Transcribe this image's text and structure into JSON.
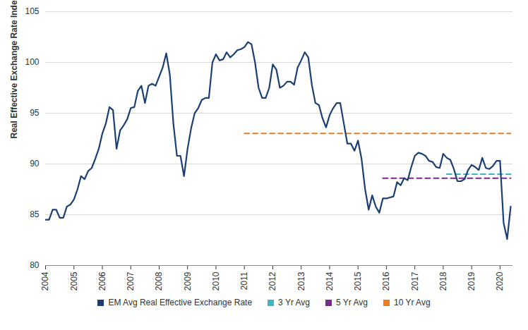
{
  "chart_data": {
    "type": "line",
    "y_label": "Real Effective Exchange Rate Index",
    "grid": true,
    "legend": "bottom",
    "xlim": [
      2004,
      2020.45
    ],
    "xticks": [
      2004,
      2005,
      2006,
      2007,
      2008,
      2009,
      2010,
      2011,
      2012,
      2013,
      2014,
      2015,
      2016,
      2017,
      2018,
      2019,
      2020
    ],
    "ylim": [
      80,
      105
    ],
    "yticks": [
      80,
      85,
      90,
      95,
      100,
      105
    ],
    "x": [
      2004,
      2004.125,
      2004.25,
      2004.375,
      2004.5,
      2004.625,
      2004.75,
      2004.875,
      2005,
      2005.125,
      2005.25,
      2005.375,
      2005.5,
      2005.625,
      2005.75,
      2005.875,
      2006,
      2006.125,
      2006.25,
      2006.375,
      2006.5,
      2006.625,
      2006.75,
      2006.875,
      2007,
      2007.125,
      2007.25,
      2007.375,
      2007.5,
      2007.625,
      2007.75,
      2007.875,
      2008,
      2008.125,
      2008.25,
      2008.375,
      2008.5,
      2008.625,
      2008.75,
      2008.875,
      2009,
      2009.125,
      2009.25,
      2009.375,
      2009.5,
      2009.625,
      2009.75,
      2009.875,
      2010,
      2010.125,
      2010.25,
      2010.375,
      2010.5,
      2010.625,
      2010.75,
      2010.875,
      2011,
      2011.125,
      2011.25,
      2011.375,
      2011.5,
      2011.625,
      2011.75,
      2011.875,
      2012,
      2012.125,
      2012.25,
      2012.375,
      2012.5,
      2012.625,
      2012.75,
      2012.875,
      2013,
      2013.125,
      2013.25,
      2013.375,
      2013.5,
      2013.625,
      2013.75,
      2013.875,
      2014,
      2014.125,
      2014.25,
      2014.375,
      2014.5,
      2014.625,
      2014.75,
      2014.875,
      2015,
      2015.125,
      2015.25,
      2015.375,
      2015.5,
      2015.625,
      2015.75,
      2015.875,
      2016,
      2016.125,
      2016.25,
      2016.375,
      2016.5,
      2016.625,
      2016.75,
      2016.875,
      2017,
      2017.125,
      2017.25,
      2017.375,
      2017.5,
      2017.625,
      2017.75,
      2017.875,
      2018,
      2018.125,
      2018.25,
      2018.375,
      2018.5,
      2018.625,
      2018.75,
      2018.875,
      2019,
      2019.125,
      2019.25,
      2019.375,
      2019.5,
      2019.625,
      2019.75,
      2019.875,
      2020,
      2020.125,
      2020.25,
      2020.375
    ],
    "series": [
      {
        "name": "EM Avg Real Effective Exchange Rate",
        "color": "#1b3f73",
        "line_style": "solid",
        "values": [
          84.5,
          84.5,
          85.5,
          85.5,
          84.7,
          84.7,
          85.8,
          86.0,
          86.5,
          87.5,
          88.8,
          88.5,
          89.3,
          89.6,
          90.5,
          91.5,
          93.0,
          94.0,
          95.6,
          95.3,
          91.5,
          93.3,
          93.8,
          94.4,
          95.5,
          95.6,
          97.2,
          97.7,
          96.0,
          97.7,
          97.9,
          97.7,
          98.6,
          99.5,
          100.9,
          98.8,
          94.0,
          90.8,
          90.8,
          88.8,
          91.5,
          93.5,
          95.0,
          95.5,
          96.3,
          96.5,
          96.5,
          100.0,
          100.8,
          100.2,
          100.3,
          101.0,
          100.5,
          100.8,
          101.2,
          101.3,
          101.5,
          102.0,
          101.8,
          100.0,
          97.5,
          96.5,
          96.5,
          97.5,
          99.8,
          99.3,
          97.5,
          97.7,
          98.1,
          98.1,
          97.8,
          99.5,
          100.2,
          101.0,
          100.5,
          97.8,
          96.0,
          95.8,
          94.5,
          93.6,
          94.8,
          95.5,
          96.0,
          96.0,
          94.0,
          92.0,
          92.0,
          91.3,
          92.3,
          90.5,
          87.5,
          85.5,
          86.9,
          85.8,
          85.2,
          86.6,
          86.6,
          86.7,
          86.8,
          88.2,
          87.9,
          88.6,
          88.4,
          89.7,
          90.8,
          91.1,
          91.0,
          90.8,
          90.3,
          90.2,
          89.7,
          89.6,
          91.0,
          90.6,
          90.4,
          89.5,
          88.3,
          88.3,
          88.5,
          89.4,
          89.9,
          89.7,
          89.4,
          90.6,
          89.6,
          89.5,
          89.8,
          90.3,
          90.3,
          84.2,
          82.6,
          85.8
        ]
      },
      {
        "name": "3 Yr Avg",
        "color": "#3fb4c6",
        "line_style": "dashed",
        "values": [
          null,
          null,
          null,
          null,
          null,
          null,
          null,
          null,
          null,
          null,
          null,
          null,
          null,
          null,
          null,
          null,
          null,
          null,
          null,
          null,
          null,
          null,
          null,
          null,
          null,
          null,
          null,
          null,
          null,
          null,
          null,
          null,
          null,
          null,
          null,
          null,
          null,
          null,
          null,
          null,
          null,
          null,
          null,
          null,
          null,
          null,
          null,
          null,
          null,
          null,
          null,
          null,
          null,
          null,
          null,
          null,
          null,
          null,
          null,
          null,
          null,
          null,
          null,
          null,
          null,
          null,
          null,
          null,
          null,
          null,
          null,
          null,
          null,
          null,
          null,
          null,
          null,
          null,
          null,
          null,
          null,
          null,
          null,
          null,
          null,
          null,
          null,
          null,
          null,
          null,
          null,
          null,
          null,
          null,
          null,
          null,
          null,
          null,
          null,
          null,
          null,
          null,
          null,
          null,
          null,
          null,
          null,
          null,
          null,
          null,
          null,
          null,
          null,
          89,
          89,
          89,
          89,
          89,
          89,
          89,
          89,
          89,
          89,
          89,
          89,
          89,
          89,
          89,
          89,
          89,
          89,
          89
        ]
      },
      {
        "name": "5 Yr Avg",
        "color": "#7a2a8c",
        "line_style": "dashed",
        "values": [
          null,
          null,
          null,
          null,
          null,
          null,
          null,
          null,
          null,
          null,
          null,
          null,
          null,
          null,
          null,
          null,
          null,
          null,
          null,
          null,
          null,
          null,
          null,
          null,
          null,
          null,
          null,
          null,
          null,
          null,
          null,
          null,
          null,
          null,
          null,
          null,
          null,
          null,
          null,
          null,
          null,
          null,
          null,
          null,
          null,
          null,
          null,
          null,
          null,
          null,
          null,
          null,
          null,
          null,
          null,
          null,
          null,
          null,
          null,
          null,
          null,
          null,
          null,
          null,
          null,
          null,
          null,
          null,
          null,
          null,
          null,
          null,
          null,
          null,
          null,
          null,
          null,
          null,
          null,
          null,
          null,
          null,
          null,
          null,
          null,
          null,
          null,
          null,
          null,
          null,
          null,
          null,
          null,
          null,
          null,
          88.6,
          88.6,
          88.6,
          88.6,
          88.6,
          88.6,
          88.6,
          88.6,
          88.6,
          88.6,
          88.6,
          88.6,
          88.6,
          88.6,
          88.6,
          88.6,
          88.6,
          88.6,
          88.6,
          88.6,
          88.6,
          88.6,
          88.6,
          88.6,
          88.6,
          88.6,
          88.6,
          88.6,
          88.6,
          88.6,
          88.6,
          88.6,
          88.6,
          88.6,
          88.6,
          88.6,
          88.6
        ]
      },
      {
        "name": "10 Yr Avg",
        "color": "#f07d1e",
        "line_style": "dashed",
        "values": [
          null,
          null,
          null,
          null,
          null,
          null,
          null,
          null,
          null,
          null,
          null,
          null,
          null,
          null,
          null,
          null,
          null,
          null,
          null,
          null,
          null,
          null,
          null,
          null,
          null,
          null,
          null,
          null,
          null,
          null,
          null,
          null,
          null,
          null,
          null,
          null,
          null,
          null,
          null,
          null,
          null,
          null,
          null,
          null,
          null,
          null,
          null,
          null,
          null,
          null,
          null,
          null,
          null,
          null,
          null,
          null,
          93,
          93,
          93,
          93,
          93,
          93,
          93,
          93,
          93,
          93,
          93,
          93,
          93,
          93,
          93,
          93,
          93,
          93,
          93,
          93,
          93,
          93,
          93,
          93,
          93,
          93,
          93,
          93,
          93,
          93,
          93,
          93,
          93,
          93,
          93,
          93,
          93,
          93,
          93,
          93,
          93,
          93,
          93,
          93,
          93,
          93,
          93,
          93,
          93,
          93,
          93,
          93,
          93,
          93,
          93,
          93,
          93,
          93,
          93,
          93,
          93,
          93,
          93,
          93,
          93,
          93,
          93,
          93,
          93,
          93,
          93,
          93,
          93,
          93,
          93,
          93
        ]
      }
    ]
  }
}
